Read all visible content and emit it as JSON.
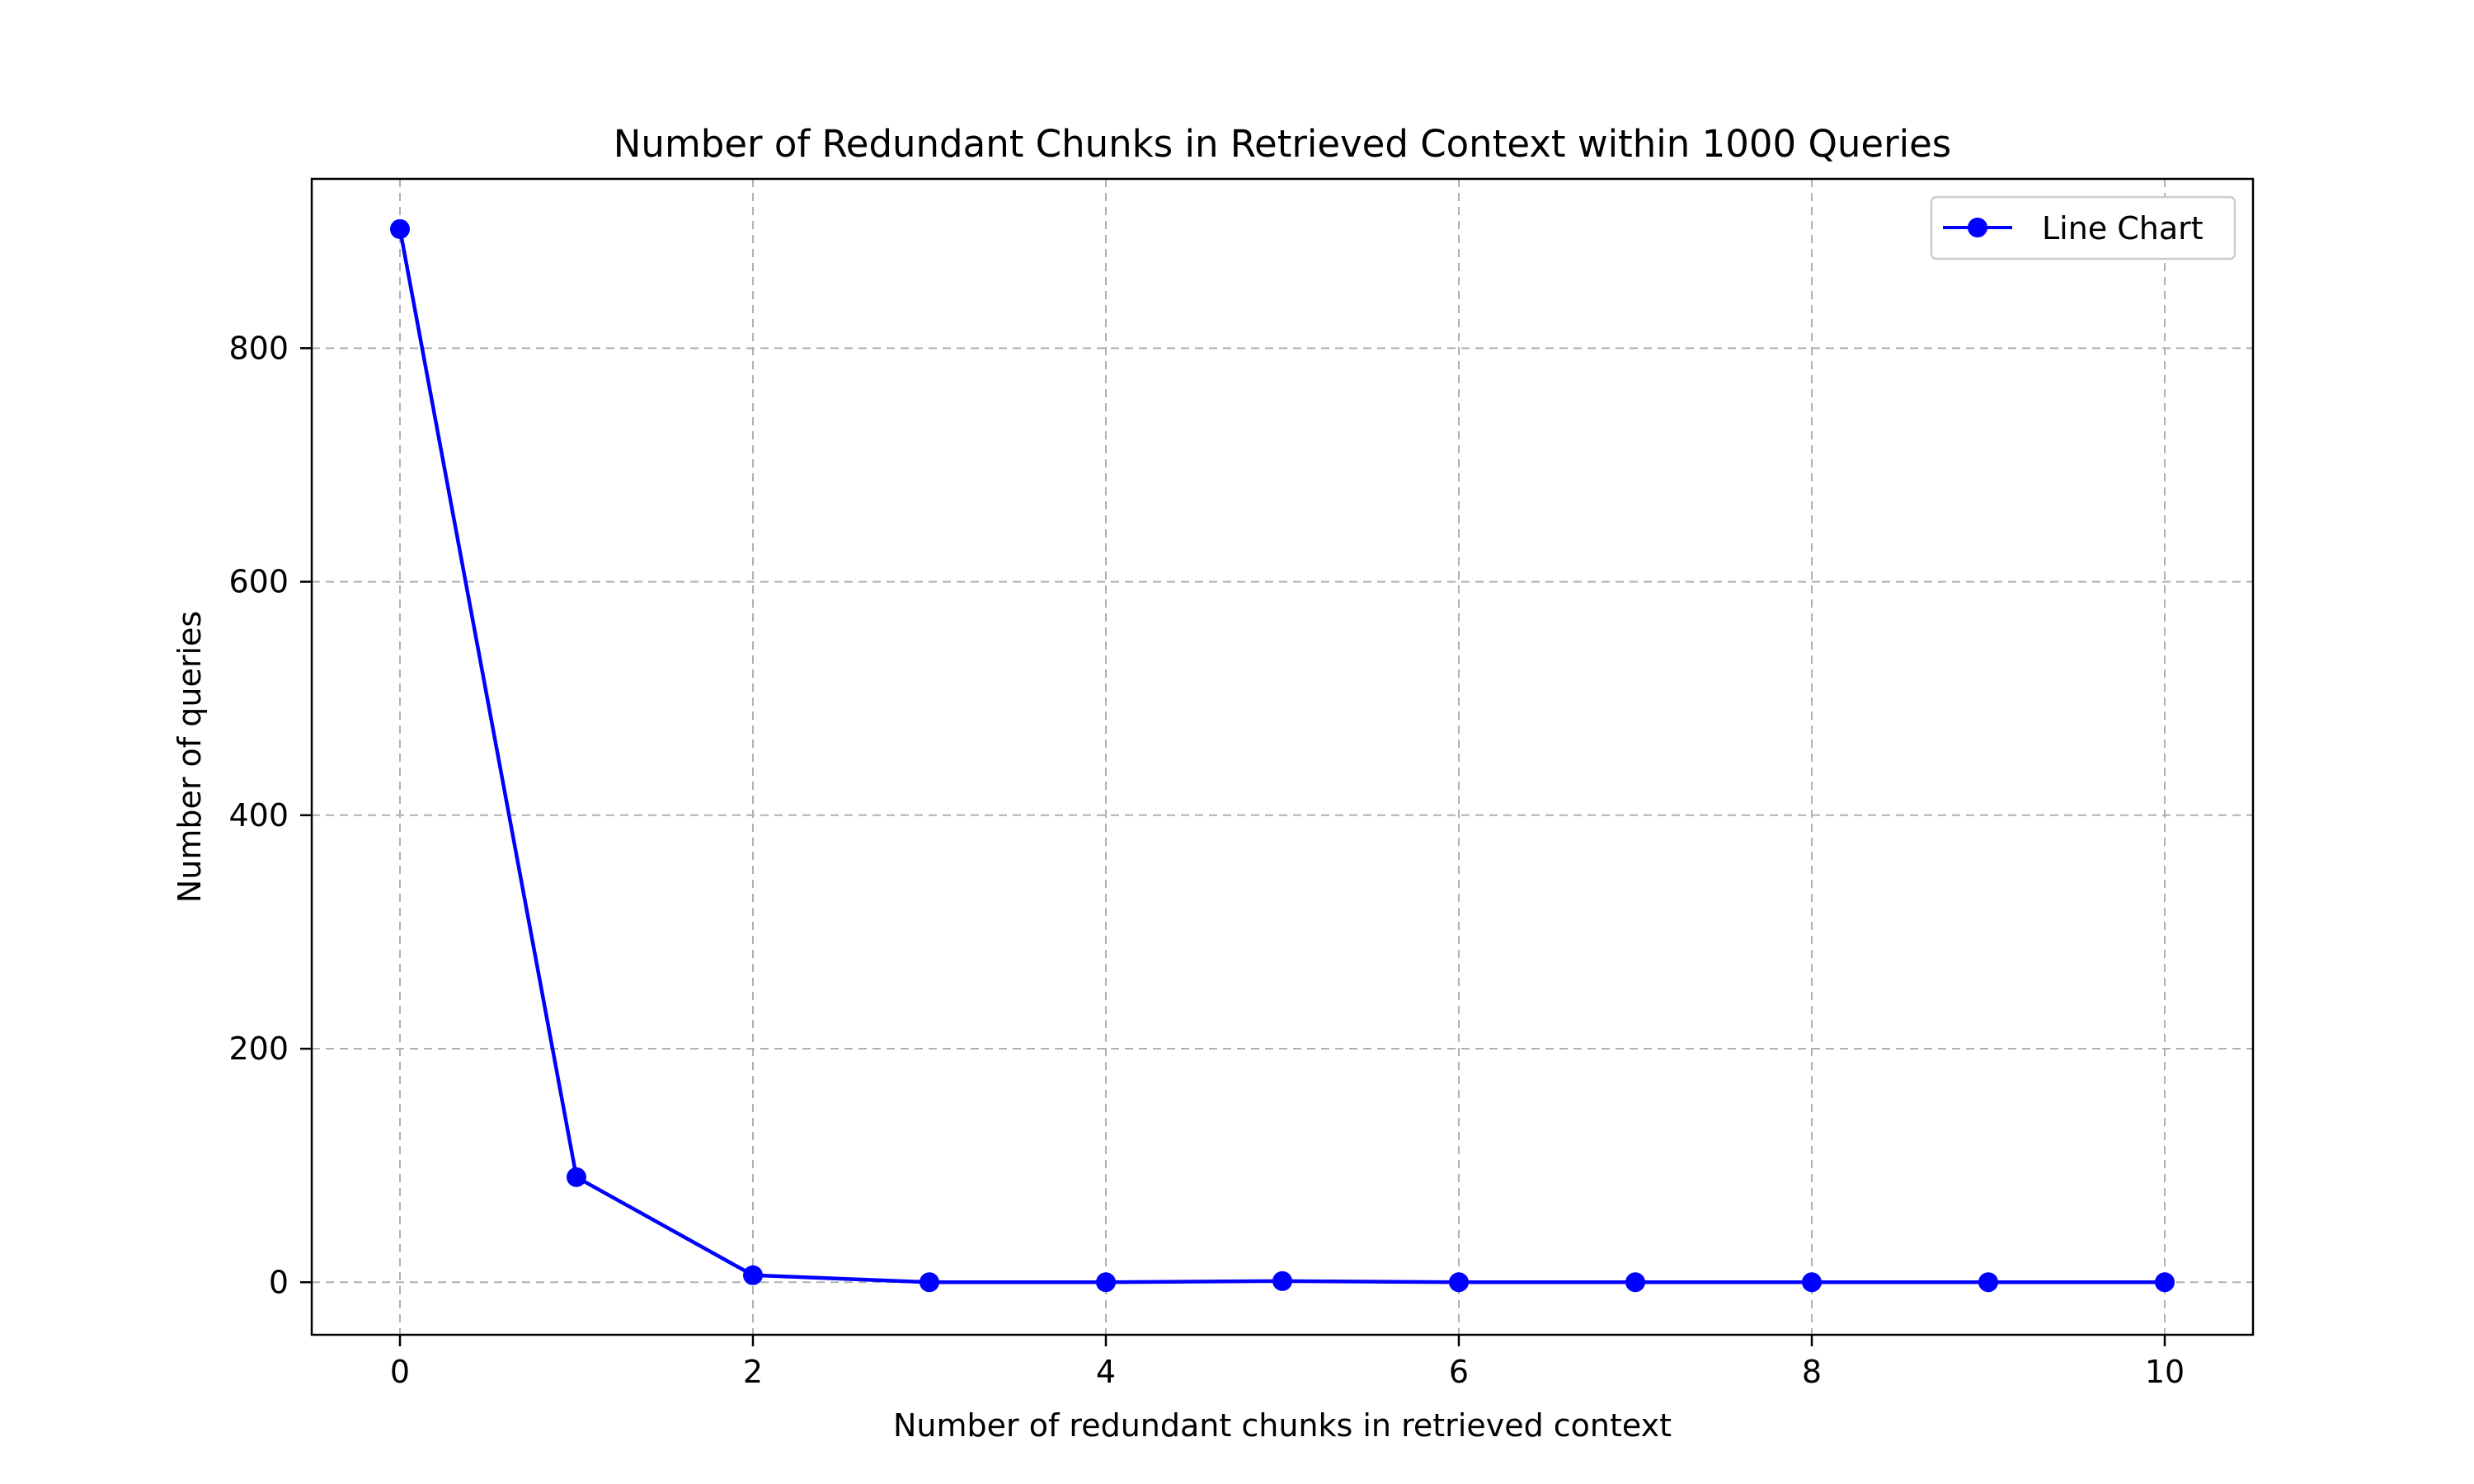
{
  "chart_data": {
    "type": "line",
    "title": "Number of Redundant Chunks in Retrieved Context within 1000 Queries",
    "xlabel": "Number of redundant chunks in retrieved context",
    "ylabel": "Number of queries",
    "xlim": [
      -0.5,
      10.5
    ],
    "ylim": [
      -45,
      945
    ],
    "xticks": [
      0,
      2,
      4,
      6,
      8,
      10
    ],
    "yticks": [
      0,
      200,
      400,
      600,
      800
    ],
    "grid": true,
    "legend_position": "top-right",
    "series": [
      {
        "name": "Line Chart",
        "color": "#0000ff",
        "marker": "circle",
        "x": [
          0,
          1,
          2,
          3,
          4,
          5,
          6,
          7,
          8,
          9,
          10
        ],
        "y": [
          902,
          90,
          6,
          0,
          0,
          1,
          0,
          0,
          0,
          0,
          0
        ]
      }
    ]
  }
}
